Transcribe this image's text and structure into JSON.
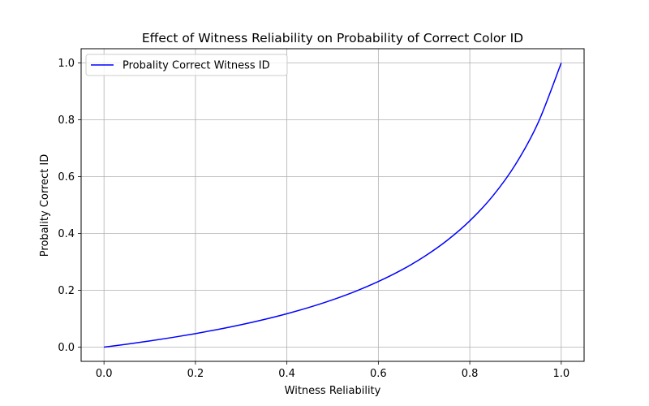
{
  "chart_data": {
    "type": "line",
    "title": "Effect of Witness Reliability on Probability of Correct Color ID",
    "xlabel": "Witness Reliability",
    "ylabel": "Probality Correct ID",
    "xlim": [
      -0.05,
      1.05
    ],
    "ylim": [
      -0.05,
      1.05
    ],
    "x_ticks": [
      0.0,
      0.2,
      0.4,
      0.6,
      0.8,
      1.0
    ],
    "x_tick_labels": [
      "0.0",
      "0.2",
      "0.4",
      "0.6",
      "0.8",
      "1.0"
    ],
    "y_ticks": [
      0.0,
      0.2,
      0.4,
      0.6,
      0.8,
      1.0
    ],
    "y_tick_labels": [
      "0.0",
      "0.2",
      "0.4",
      "0.6",
      "0.8",
      "1.0"
    ],
    "grid": true,
    "legend_position": "upper-left",
    "series": [
      {
        "name": "Probality Correct Witness ID",
        "color": "#0000ff",
        "x": [
          0.0,
          0.05,
          0.1,
          0.15,
          0.2,
          0.25,
          0.3,
          0.35,
          0.4,
          0.45,
          0.5,
          0.55,
          0.6,
          0.65,
          0.7,
          0.75,
          0.8,
          0.85,
          0.9,
          0.95,
          1.0
        ],
        "y": [
          0.0,
          0.0103,
          0.0217,
          0.0341,
          0.0476,
          0.0625,
          0.0789,
          0.0972,
          0.1176,
          0.1406,
          0.1667,
          0.1964,
          0.2308,
          0.2708,
          0.3182,
          0.375,
          0.4444,
          0.5313,
          0.6429,
          0.7917,
          1.0
        ]
      }
    ]
  }
}
